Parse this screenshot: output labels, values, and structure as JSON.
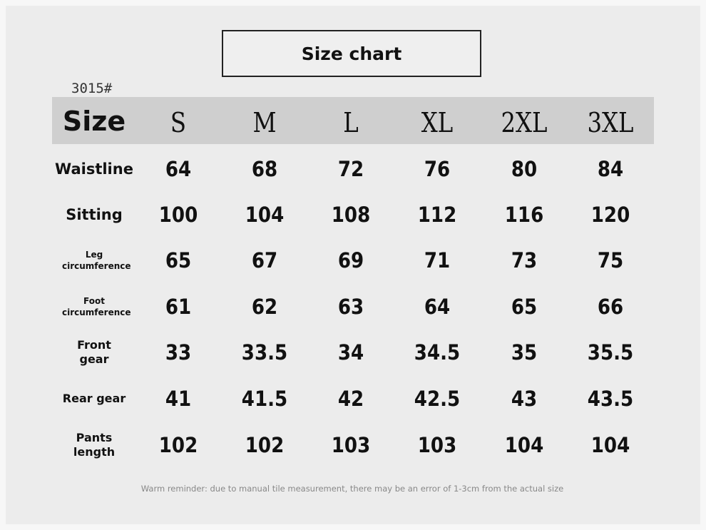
{
  "title": "Size chart",
  "style_code": "3015#",
  "header": {
    "label": "Size",
    "sizes": [
      "S",
      "M",
      "L",
      "XL",
      "2XL",
      "3XL"
    ]
  },
  "rows": [
    {
      "label": "Waistline",
      "values": [
        "64",
        "68",
        "72",
        "76",
        "80",
        "84"
      ]
    },
    {
      "label": "Sitting",
      "values": [
        "100",
        "104",
        "108",
        "112",
        "116",
        "120"
      ]
    },
    {
      "label": "Leg circumference",
      "values": [
        "65",
        "67",
        "69",
        "71",
        "73",
        "75"
      ]
    },
    {
      "label": "Foot circumference",
      "values": [
        "61",
        "62",
        "63",
        "64",
        "65",
        "66"
      ]
    },
    {
      "label": "Front gear",
      "values": [
        "33",
        "33.5",
        "34",
        "34.5",
        "35",
        "35.5"
      ]
    },
    {
      "label": "Rear gear",
      "values": [
        "41",
        "41.5",
        "42",
        "42.5",
        "43",
        "43.5"
      ]
    },
    {
      "label": "Pants length",
      "values": [
        "102",
        "102",
        "103",
        "103",
        "104",
        "104"
      ]
    }
  ],
  "reminder": "Warm reminder: due to manual tile measurement, there may be an error of 1-3cm from the actual size",
  "colors": {
    "background": "#ececec",
    "header_bar": "#cfcfcf",
    "text": "#111111",
    "reminder": "#888888"
  }
}
